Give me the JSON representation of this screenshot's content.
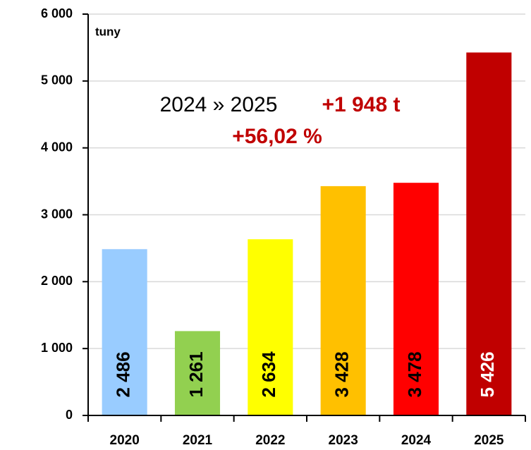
{
  "chart_data": {
    "type": "bar",
    "categories": [
      "2020",
      "2021",
      "2022",
      "2023",
      "2024",
      "2025"
    ],
    "values": [
      2486,
      1261,
      2634,
      3428,
      3478,
      5426
    ],
    "value_labels": [
      "2 486",
      "1 261",
      "2 634",
      "3 428",
      "3 478",
      "5 426"
    ],
    "colors": [
      "#99ccff",
      "#92d050",
      "#ffff00",
      "#ffc000",
      "#ff0000",
      "#c00000"
    ],
    "value_label_colors": [
      "#000000",
      "#000000",
      "#000000",
      "#000000",
      "#000000",
      "#ffffff"
    ],
    "ylabel": "tuny",
    "annotations": {
      "comparison": "2024 » 2025",
      "delta": "+1 948 t",
      "percent": "+56,02 %"
    },
    "annotation_color": "#c00000",
    "ylim": [
      0,
      6000
    ],
    "yticks": [
      0,
      {
        "value": 1000,
        "label": "1 000"
      },
      {
        "value": 2000,
        "label": "2 000"
      },
      {
        "value": 3000,
        "label": "3 000"
      },
      {
        "value": 4000,
        "label": "4 000"
      },
      {
        "value": 5000,
        "label": "5 000"
      },
      {
        "value": 6000,
        "label": "6 000"
      }
    ],
    "grid": true
  }
}
